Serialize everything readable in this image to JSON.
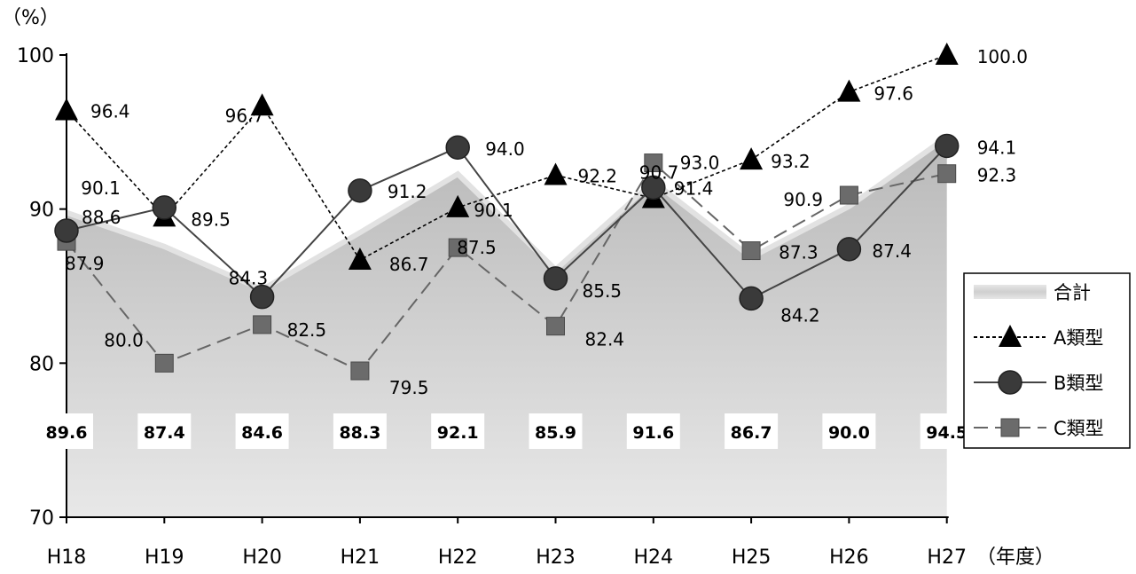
{
  "chart_data": {
    "type": "line",
    "title": "",
    "ylabel": "（%）",
    "xlabel": "（年度）",
    "ylim": [
      70,
      100
    ],
    "yticks": [
      70,
      80,
      90,
      100
    ],
    "grid": false,
    "legend_position": "right",
    "categories": [
      "H18",
      "H19",
      "H20",
      "H21",
      "H22",
      "H23",
      "H24",
      "H25",
      "H26",
      "H27"
    ],
    "series": [
      {
        "name": "合計",
        "kind": "area",
        "color": "#c4c4c4",
        "values": [
          89.6,
          87.4,
          84.6,
          88.3,
          92.1,
          85.9,
          91.6,
          86.7,
          90.0,
          94.5
        ],
        "labels": [
          "89.6",
          "87.4",
          "84.6",
          "88.3",
          "92.1",
          "85.9",
          "91.6",
          "86.7",
          "90.0",
          "94.5"
        ]
      },
      {
        "name": "A類型",
        "kind": "line",
        "marker": "triangle",
        "dash": "dotted",
        "color": "#000000",
        "values": [
          96.4,
          89.5,
          96.7,
          86.7,
          90.1,
          92.2,
          90.7,
          93.2,
          97.6,
          100.0
        ],
        "labels": [
          "96.4",
          "89.5",
          "96.7",
          "86.7",
          "90.1",
          "92.2",
          "90.7",
          "93.2",
          "97.6",
          "100.0"
        ]
      },
      {
        "name": "B類型",
        "kind": "line",
        "marker": "circle",
        "dash": "solid",
        "color": "#444444",
        "values": [
          88.6,
          90.1,
          84.3,
          91.2,
          94.0,
          85.5,
          91.4,
          84.2,
          87.4,
          94.1
        ],
        "labels": [
          "88.6",
          "90.1",
          "84.3",
          "91.2",
          "94.0",
          "85.5",
          "91.4",
          "84.2",
          "87.4",
          "94.1"
        ]
      },
      {
        "name": "C類型",
        "kind": "line",
        "marker": "square",
        "dash": "dashed",
        "color": "#666666",
        "values": [
          87.9,
          80.0,
          82.5,
          79.5,
          87.5,
          82.4,
          93.0,
          87.3,
          90.9,
          92.3
        ],
        "labels": [
          "87.9",
          "80.0",
          "82.5",
          "79.5",
          "87.5",
          "82.4",
          "93.0",
          "87.3",
          "90.9",
          "92.3"
        ]
      }
    ]
  }
}
